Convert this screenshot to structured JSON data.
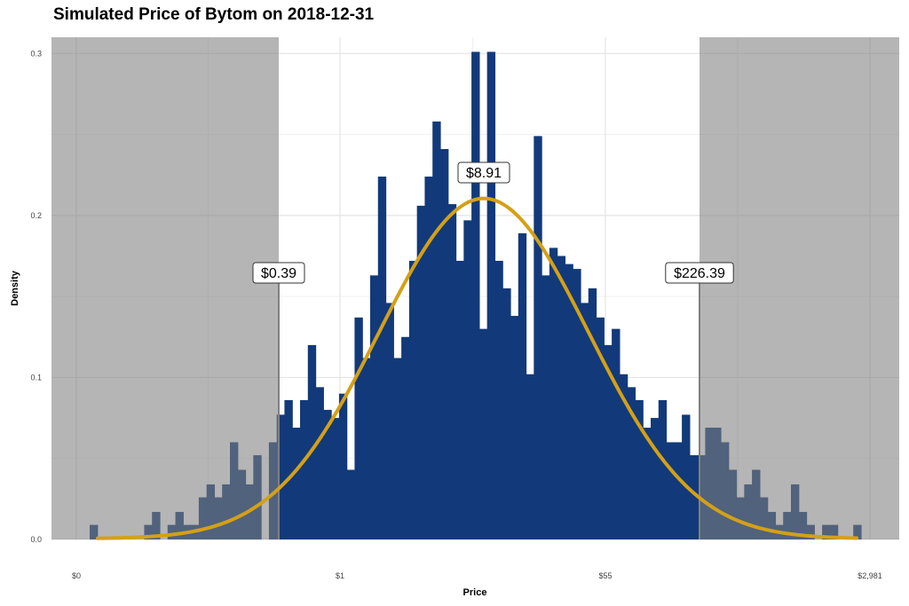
{
  "chart_data": {
    "type": "bar",
    "title": "Simulated Price of Bytom on 2018-12-31",
    "xlabel": "Price",
    "ylabel": "Density",
    "x_axis_scale": "log",
    "x_tick_labels": [
      "$0",
      "$1",
      "$55",
      "$2,981"
    ],
    "ylim": [
      0,
      0.31
    ],
    "y_ticks": [
      0.0,
      0.1,
      0.2,
      0.3
    ],
    "y_tick_labels": [
      "0.0",
      "0.1",
      "0.2",
      "0.3"
    ],
    "grid": true,
    "colors": {
      "bars": "#123a7a",
      "curve": "#d4a017",
      "shaded_region": "#808080",
      "marker_line": "#808080"
    },
    "shaded_regions": [
      "below $0.39",
      "above $226.39"
    ],
    "annotations": [
      {
        "label": "$0.39",
        "description": "lower bound"
      },
      {
        "label": "$8.91",
        "description": "median"
      },
      {
        "label": "$226.39",
        "description": "upper bound"
      }
    ],
    "histogram_density": [
      0.009,
      0.0,
      0.0,
      0.0,
      0.0,
      0.0,
      0.0,
      0.009,
      0.017,
      0.0,
      0.009,
      0.017,
      0.009,
      0.009,
      0.026,
      0.034,
      0.026,
      0.034,
      0.06,
      0.043,
      0.034,
      0.052,
      0.0,
      0.06,
      0.077,
      0.086,
      0.069,
      0.086,
      0.12,
      0.094,
      0.08,
      0.075,
      0.09,
      0.043,
      0.137,
      0.112,
      0.163,
      0.224,
      0.146,
      0.112,
      0.125,
      0.172,
      0.206,
      0.224,
      0.258,
      0.241,
      0.207,
      0.172,
      0.197,
      0.301,
      0.13,
      0.301,
      0.172,
      0.155,
      0.138,
      0.189,
      0.102,
      0.249,
      0.163,
      0.18,
      0.175,
      0.17,
      0.167,
      0.146,
      0.155,
      0.137,
      0.12,
      0.13,
      0.102,
      0.094,
      0.086,
      0.069,
      0.075,
      0.086,
      0.06,
      0.06,
      0.077,
      0.052,
      0.052,
      0.069,
      0.069,
      0.06,
      0.043,
      0.026,
      0.034,
      0.043,
      0.026,
      0.017,
      0.009,
      0.017,
      0.034,
      0.017,
      0.009,
      0.0,
      0.009,
      0.009,
      0.0,
      0.0,
      0.009
    ],
    "fitted_curve": {
      "peak_density": 0.21,
      "peak_label": "$8.91"
    }
  }
}
